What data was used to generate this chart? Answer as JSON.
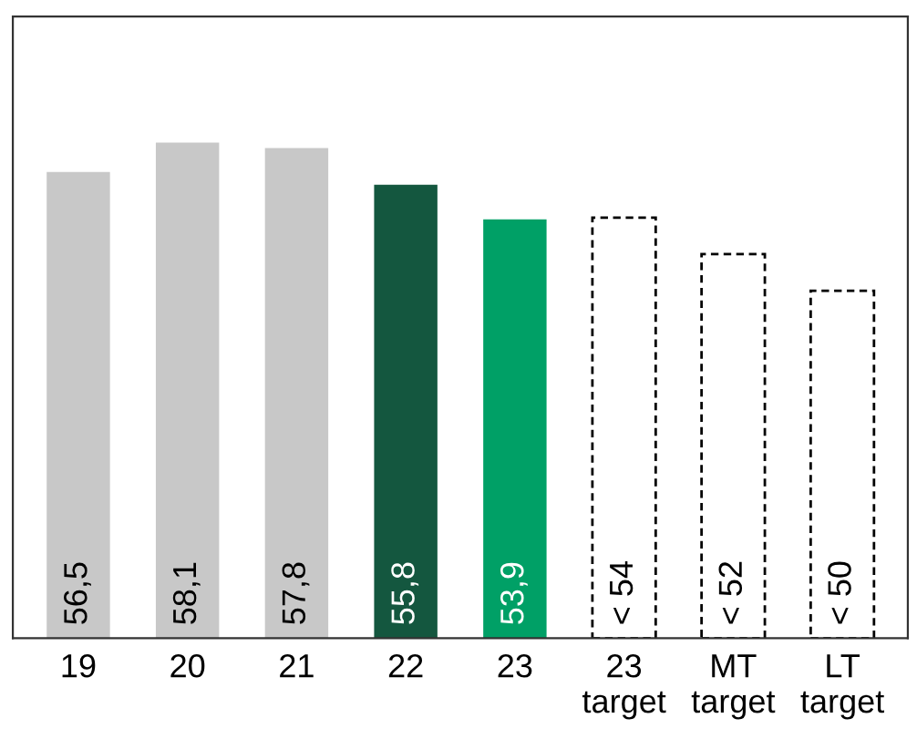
{
  "chart_data": {
    "type": "bar",
    "categories": [
      "19",
      "20",
      "21",
      "22",
      "23",
      "23\ntarget",
      "MT\ntarget",
      "LT\ntarget"
    ],
    "ylim": [
      31,
      65
    ],
    "tick_labels": "x",
    "grid": false,
    "series": [
      {
        "colors": [
          "#c8c8c8",
          "#c8c8c8",
          "#c8c8c8",
          "#14573f",
          "#00a066",
          null,
          null,
          null
        ],
        "values": [
          56.5,
          58.1,
          57.8,
          55.8,
          53.9,
          null,
          null,
          null
        ],
        "value_labels": [
          "56,5",
          "58,1",
          "57,8",
          "55,8",
          "53,9",
          null,
          null,
          null
        ]
      },
      {
        "color": "#ffffff",
        "line_style": "dashed",
        "values": [
          null,
          null,
          null,
          null,
          null,
          54,
          52,
          50
        ],
        "value_labels": [
          null,
          null,
          null,
          null,
          null,
          "< 54",
          "< 52",
          "< 50"
        ]
      }
    ]
  }
}
